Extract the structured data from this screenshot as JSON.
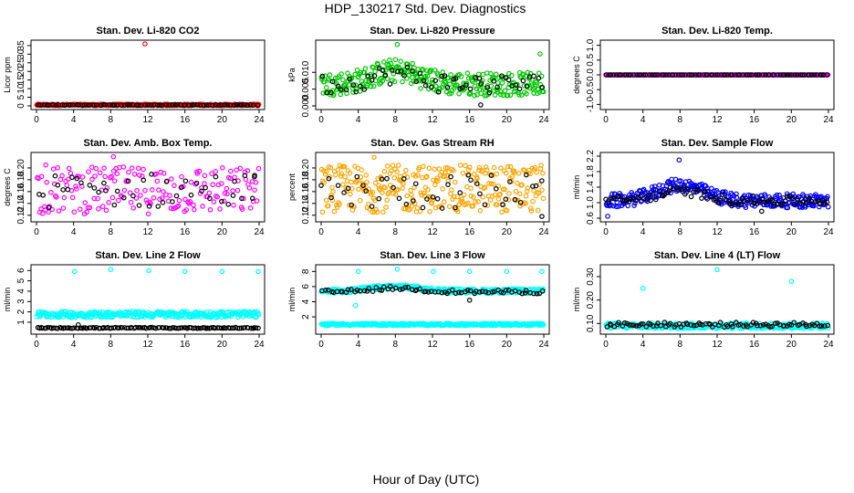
{
  "figure": {
    "title": "HDP_130217  Std. Dev. Diagnostics",
    "xlabel": "Hour of Day (UTC)"
  },
  "chart_data": [
    {
      "type": "scatter",
      "title": "Stan. Dev. Li-820 CO2",
      "ylabel": "Licor ppm",
      "xlim": [
        0,
        24
      ],
      "xticks": [
        "0",
        "4",
        "8",
        "12",
        "16",
        "20",
        "24"
      ],
      "ylim": [
        0,
        36
      ],
      "yticks": [
        "0",
        "5",
        "10",
        "15",
        "20",
        "25",
        "30",
        "35"
      ],
      "series": [
        {
          "color": "#ff0000",
          "cloud": {
            "base": 0.6,
            "spread": 0.4,
            "density": 1
          },
          "points": [
            [
              0.1,
              0.6
            ],
            [
              11.7,
              36
            ]
          ]
        },
        {
          "color": "#000000",
          "cloud": {
            "base": 0.5,
            "spread": 0.2,
            "density": 0.25
          }
        }
      ]
    },
    {
      "type": "scatter",
      "title": "Stan. Dev. Li-820 Pressure",
      "ylabel": "kPa",
      "xlim": [
        0,
        24
      ],
      "xticks": [
        "0",
        "4",
        "8",
        "12",
        "16",
        "20",
        "24"
      ],
      "ylim": [
        0.0,
        0.0185
      ],
      "yticks": [
        "0.000",
        "0.005",
        "0.010"
      ],
      "series": [
        {
          "color": "#00c800",
          "cloud": {
            "base": 0.0065,
            "spread": 0.0035,
            "density": 1,
            "bump": 0.004
          },
          "points": [
            [
              8.2,
              0.0183
            ],
            [
              23.6,
              0.0155
            ]
          ]
        },
        {
          "color": "#000000",
          "cloud": {
            "base": 0.0065,
            "spread": 0.003,
            "density": 0.2,
            "bump": 0.003
          },
          "points": [
            [
              17.2,
              0.0003
            ]
          ]
        }
      ]
    },
    {
      "type": "scatter",
      "title": "Stan. Dev. Li-820 Temp.",
      "ylabel": "degrees C",
      "xlim": [
        0,
        24
      ],
      "xticks": [
        "0",
        "4",
        "8",
        "12",
        "16",
        "20",
        "24"
      ],
      "ylim": [
        -1.05,
        1.05
      ],
      "yticks": [
        "-1.0",
        "-0.5",
        "0.0",
        "0.5",
        "1.0"
      ],
      "series": [
        {
          "color": "#ff00ff",
          "cloud": {
            "base": 0.0,
            "spread": 0.0,
            "density": 1
          }
        },
        {
          "color": "#000000",
          "cloud": {
            "base": 0.0,
            "spread": 0.0,
            "density": 0.3
          }
        }
      ]
    },
    {
      "type": "scatter",
      "title": "Stan. Dev. Amb. Box Temp.",
      "ylabel": "degrees C",
      "xlim": [
        0,
        24
      ],
      "xticks": [
        "0",
        "4",
        "8",
        "12",
        "16",
        "20",
        "24"
      ],
      "ylim": [
        0.115,
        0.22
      ],
      "yticks": [
        "0.12",
        "0.14",
        "0.16",
        "0.18",
        "0.20"
      ],
      "series": [
        {
          "color": "#ff00ff",
          "cloud": {
            "base": 0.162,
            "spread": 0.04,
            "density": 0.6
          },
          "points": [
            [
              8.3,
              0.219
            ],
            [
              1.0,
              0.205
            ]
          ]
        },
        {
          "color": "#000000",
          "cloud": {
            "base": 0.162,
            "spread": 0.03,
            "density": 0.15
          },
          "points": [
            [
              23.5,
              0.185
            ]
          ]
        }
      ]
    },
    {
      "type": "scatter",
      "title": "Stan. Dev. Gas Stream RH",
      "ylabel": "percent",
      "xlim": [
        0,
        24
      ],
      "xticks": [
        "0",
        "4",
        "8",
        "12",
        "16",
        "20",
        "24"
      ],
      "ylim": [
        0.115,
        0.22
      ],
      "yticks": [
        "0.12",
        "0.14",
        "0.16",
        "0.18",
        "0.20"
      ],
      "series": [
        {
          "color": "#ffa500",
          "cloud": {
            "base": 0.165,
            "spread": 0.04,
            "density": 1
          },
          "points": [
            [
              5.7,
              0.218
            ]
          ]
        },
        {
          "color": "#000000",
          "cloud": {
            "base": 0.16,
            "spread": 0.03,
            "density": 0.15
          },
          "points": [
            [
              23.8,
              0.118
            ]
          ]
        }
      ]
    },
    {
      "type": "scatter",
      "title": "Stan. Dev. Sample Flow",
      "ylabel": "ml/min",
      "xlim": [
        0,
        24
      ],
      "xticks": [
        "0",
        "4",
        "8",
        "12",
        "16",
        "20",
        "24"
      ],
      "ylim": [
        0.6,
        2.2
      ],
      "yticks": [
        "0.6",
        "1.0",
        "1.4",
        "1.8",
        "2.2"
      ],
      "series": [
        {
          "color": "#0000ff",
          "cloud": {
            "base": 1.05,
            "spread": 0.18,
            "density": 1,
            "bump": 0.4
          },
          "points": [
            [
              0.2,
              0.65
            ],
            [
              7.9,
              2.1
            ]
          ]
        },
        {
          "color": "#000000",
          "cloud": {
            "base": 1.05,
            "spread": 0.12,
            "density": 0.3,
            "bump": 0.25
          },
          "points": [
            [
              16.8,
              0.78
            ]
          ]
        }
      ]
    },
    {
      "type": "scatter",
      "title": "Stan. Dev. Line 2 Flow",
      "ylabel": "ml/min",
      "xlim": [
        0,
        24
      ],
      "xticks": [
        "0",
        "4",
        "8",
        "12",
        "16",
        "20",
        "24"
      ],
      "ylim": [
        0.2,
        6.2
      ],
      "yticks": [
        "1",
        "2",
        "3",
        "4",
        "5",
        "6"
      ],
      "series": [
        {
          "color": "#00ffff",
          "cloud": {
            "base": 1.75,
            "spread": 0.3,
            "density": 1
          },
          "points": [
            [
              4.1,
              5.9
            ],
            [
              8.0,
              6.1
            ],
            [
              12.1,
              6.0
            ],
            [
              16.0,
              5.9
            ],
            [
              20.0,
              5.9
            ],
            [
              23.9,
              5.9
            ]
          ]
        },
        {
          "color": "#000000",
          "cloud": {
            "base": 0.45,
            "spread": 0.05,
            "density": 0.4
          },
          "points": [
            [
              4.5,
              0.75
            ]
          ]
        }
      ]
    },
    {
      "type": "scatter",
      "title": "Stan. Dev. Line 3 Flow",
      "ylabel": "ml/min",
      "xlim": [
        0,
        24
      ],
      "xticks": [
        "0",
        "4",
        "8",
        "12",
        "16",
        "20",
        "24"
      ],
      "ylim": [
        0.2,
        8.4
      ],
      "yticks": [
        "2",
        "4",
        "6",
        "8"
      ],
      "series": [
        {
          "color": "#00ffff",
          "cloud": {
            "base": 1.0,
            "spread": 0.15,
            "density": 1
          },
          "points": [
            [
              4.0,
              8.0
            ],
            [
              8.2,
              8.3
            ],
            [
              12.1,
              8.0
            ],
            [
              16.0,
              8.0
            ],
            [
              20.0,
              8.0
            ],
            [
              23.8,
              8.0
            ],
            [
              3.7,
              3.5
            ]
          ]
        },
        {
          "color": "#00ffff",
          "cloud": {
            "base": 5.4,
            "spread": 0.3,
            "density": 1,
            "bump": 0.6
          }
        },
        {
          "color": "#000000",
          "cloud": {
            "base": 5.3,
            "spread": 0.25,
            "density": 0.25,
            "bump": 0.5
          },
          "points": [
            [
              16.0,
              4.2
            ]
          ]
        }
      ]
    },
    {
      "type": "scatter",
      "title": "Stan. Dev. Line 4 (LT) Flow",
      "ylabel": "ml/min",
      "xlim": [
        0,
        24
      ],
      "xticks": [
        "0",
        "4",
        "8",
        "12",
        "16",
        "20",
        "24"
      ],
      "ylim": [
        0.07,
        0.335
      ],
      "yticks": [
        "0.10",
        "0.20",
        "0.30"
      ],
      "series": [
        {
          "color": "#00ffff",
          "cloud": {
            "base": 0.09,
            "spread": 0.012,
            "density": 1
          },
          "points": [
            [
              4.0,
              0.25
            ],
            [
              12.0,
              0.33
            ],
            [
              20.0,
              0.28
            ]
          ]
        },
        {
          "color": "#000000",
          "cloud": {
            "base": 0.095,
            "spread": 0.01,
            "density": 0.3
          }
        }
      ]
    }
  ]
}
